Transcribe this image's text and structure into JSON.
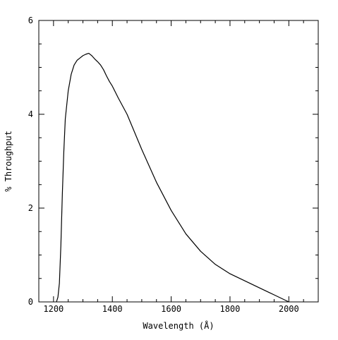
{
  "chart_data": {
    "type": "line",
    "title": "",
    "xlabel": "Wavelength (Å)",
    "ylabel": "% Throughput",
    "xlim": [
      1150,
      2100
    ],
    "ylim": [
      0,
      6
    ],
    "x_ticks_major": [
      1200,
      1400,
      1600,
      1800,
      2000
    ],
    "x_ticks_minor": [
      1150,
      1250,
      1300,
      1350,
      1450,
      1500,
      1550,
      1650,
      1700,
      1750,
      1850,
      1900,
      1950,
      2050,
      2100
    ],
    "y_ticks_major": [
      0,
      2,
      4,
      6
    ],
    "y_ticks_minor": [
      0.5,
      1,
      1.5,
      2.5,
      3,
      3.5,
      4.5,
      5,
      5.5
    ],
    "x_tick_labels": [
      "1200",
      "1400",
      "1600",
      "1800",
      "2000"
    ],
    "y_tick_labels": [
      "0",
      "2",
      "4",
      "6"
    ],
    "grid": false,
    "series": [
      {
        "x": [
          1210,
          1215,
          1220,
          1225,
          1230,
          1235,
          1240,
          1250,
          1260,
          1270,
          1280,
          1290,
          1300,
          1310,
          1320,
          1330,
          1340,
          1350,
          1360,
          1370,
          1380,
          1390,
          1400,
          1420,
          1450,
          1500,
          1550,
          1600,
          1650,
          1700,
          1750,
          1800,
          1850,
          1900,
          1950,
          2000
        ],
        "values": [
          0.0,
          0.1,
          0.4,
          1.2,
          2.3,
          3.2,
          3.9,
          4.5,
          4.85,
          5.05,
          5.15,
          5.2,
          5.25,
          5.28,
          5.3,
          5.25,
          5.18,
          5.12,
          5.05,
          4.95,
          4.82,
          4.7,
          4.6,
          4.35,
          4.0,
          3.25,
          2.55,
          1.95,
          1.45,
          1.08,
          0.8,
          0.6,
          0.45,
          0.3,
          0.15,
          0.0
        ]
      }
    ]
  }
}
